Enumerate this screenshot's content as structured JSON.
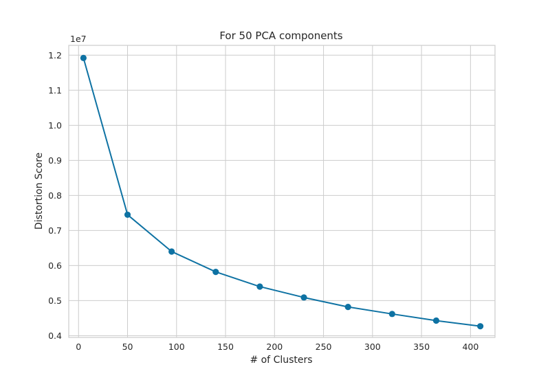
{
  "chart_data": {
    "type": "line",
    "title": "For 50 PCA components",
    "xlabel": "# of Clusters",
    "ylabel": "Distortion Score",
    "y_offset_label": "1e7",
    "x": [
      5,
      50,
      95,
      140,
      185,
      230,
      275,
      320,
      365,
      410
    ],
    "series": [
      {
        "values": [
          1.192,
          0.745,
          0.64,
          0.582,
          0.54,
          0.509,
          0.482,
          0.462,
          0.443,
          0.427
        ],
        "color": "#0e72a3"
      }
    ],
    "xlim": [
      -10,
      425
    ],
    "ylim": [
      0.395,
      1.228
    ],
    "x_ticks": [
      0,
      50,
      100,
      150,
      200,
      250,
      300,
      350,
      400
    ],
    "x_tick_labels": [
      "0",
      "50",
      "100",
      "150",
      "200",
      "250",
      "300",
      "350",
      "400"
    ],
    "y_ticks": [
      0.4,
      0.5,
      0.6,
      0.7,
      0.8,
      0.9,
      1.0,
      1.1,
      1.2
    ],
    "y_tick_labels": [
      "0.4",
      "0.5",
      "0.6",
      "0.7",
      "0.8",
      "0.9",
      "1.0",
      "1.1",
      "1.2"
    ],
    "grid": true,
    "colors": {
      "grid": "#cccccc",
      "text": "#262626"
    }
  }
}
